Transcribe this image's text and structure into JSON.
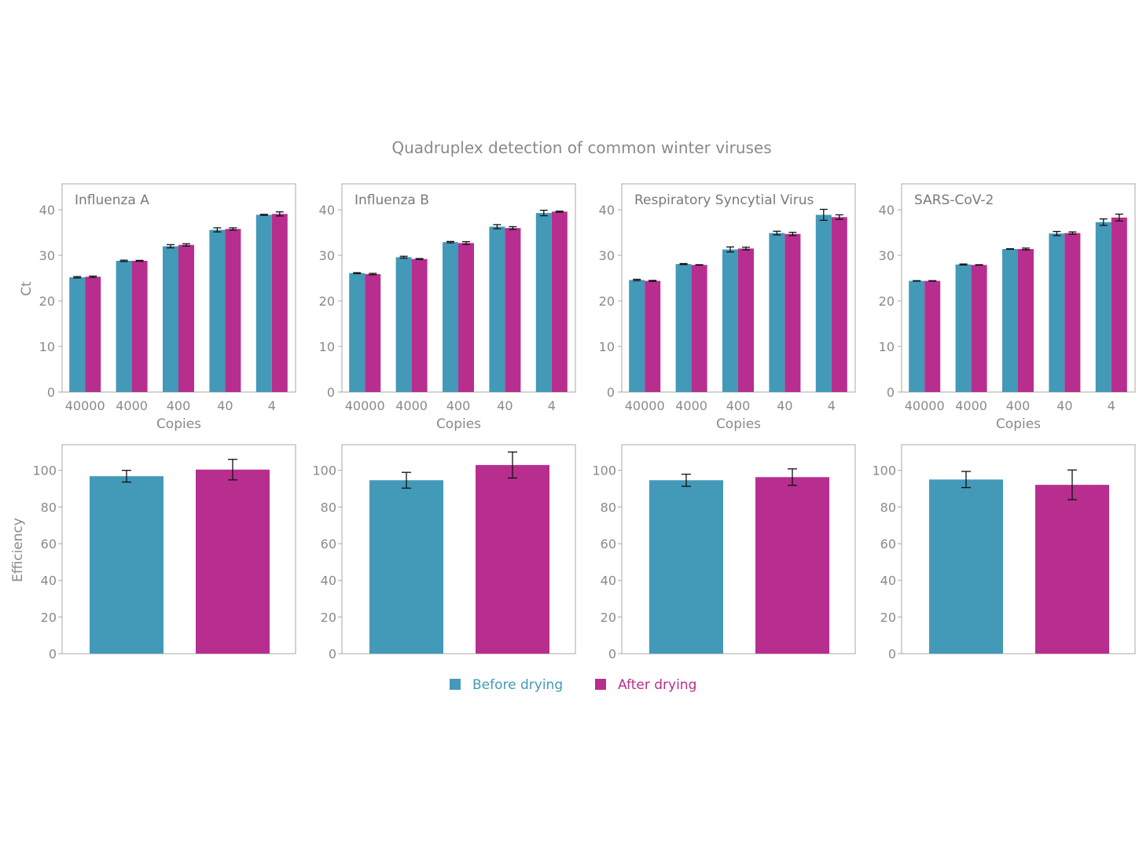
{
  "chart_data": {
    "type": "bar",
    "title": "Quadruplex detection of common winter viruses",
    "legend": {
      "placement": "bottom-center",
      "entries": [
        {
          "name": "Before drying",
          "color": "#4399b8"
        },
        {
          "name": "After drying",
          "color": "#b82e8f"
        }
      ]
    },
    "series_colors": {
      "before": "#4399b8",
      "after": "#b82e8f"
    },
    "ct_axis": {
      "ylabel": "Ct",
      "xlabel": "Copies",
      "ylim": [
        0,
        45.7
      ],
      "yticks": [
        0,
        10,
        20,
        30,
        40
      ]
    },
    "efficiency_axis": {
      "ylabel": "Efficiency",
      "ylim": [
        0,
        114
      ],
      "yticks": [
        0,
        20,
        40,
        60,
        80,
        100
      ]
    },
    "categories": [
      "40000",
      "4000",
      "400",
      "40",
      "4"
    ],
    "panels": [
      {
        "name": "Influenza A",
        "ct": {
          "series": [
            {
              "name": "Before drying",
              "values": [
                25.2,
                28.8,
                32.0,
                35.6,
                38.9
              ],
              "errors": [
                0.15,
                0.15,
                0.35,
                0.45,
                0.1
              ]
            },
            {
              "name": "After drying",
              "values": [
                25.3,
                28.8,
                32.3,
                35.8,
                39.1
              ],
              "errors": [
                0.15,
                0.1,
                0.25,
                0.25,
                0.45
              ]
            }
          ]
        },
        "efficiency": {
          "series": [
            {
              "name": "Before drying",
              "value": 96.8,
              "error": 3.2
            },
            {
              "name": "After drying",
              "value": 100.4,
              "error": 5.6
            }
          ]
        }
      },
      {
        "name": "Influenza B",
        "ct": {
          "series": [
            {
              "name": "Before drying",
              "values": [
                26.1,
                29.6,
                32.9,
                36.3,
                39.3
              ],
              "errors": [
                0.1,
                0.2,
                0.15,
                0.45,
                0.6
              ]
            },
            {
              "name": "After drying",
              "values": [
                25.9,
                29.2,
                32.7,
                36.0,
                39.6
              ],
              "errors": [
                0.15,
                0.1,
                0.3,
                0.3,
                0.1
              ]
            }
          ]
        },
        "efficiency": {
          "series": [
            {
              "name": "Before drying",
              "value": 94.6,
              "error": 4.3
            },
            {
              "name": "After drying",
              "value": 102.9,
              "error": 7.1
            }
          ]
        }
      },
      {
        "name": "Respiratory Syncytial Virus",
        "ct": {
          "series": [
            {
              "name": "Before drying",
              "values": [
                24.6,
                28.1,
                31.3,
                34.9,
                38.9
              ],
              "errors": [
                0.15,
                0.1,
                0.55,
                0.4,
                1.2
              ]
            },
            {
              "name": "After drying",
              "values": [
                24.4,
                27.9,
                31.5,
                34.7,
                38.4
              ],
              "errors": [
                0.1,
                0.05,
                0.3,
                0.35,
                0.5
              ]
            }
          ]
        },
        "efficiency": {
          "series": [
            {
              "name": "Before drying",
              "value": 94.6,
              "error": 3.3
            },
            {
              "name": "After drying",
              "value": 96.3,
              "error": 4.5
            }
          ]
        }
      },
      {
        "name": "SARS-CoV-2",
        "ct": {
          "series": [
            {
              "name": "Before drying",
              "values": [
                24.4,
                28.0,
                31.4,
                34.8,
                37.3
              ],
              "errors": [
                0.05,
                0.1,
                0.05,
                0.45,
                0.7
              ]
            },
            {
              "name": "After drying",
              "values": [
                24.4,
                27.9,
                31.4,
                34.9,
                38.3
              ],
              "errors": [
                0.05,
                0.05,
                0.2,
                0.25,
                0.75
              ]
            }
          ]
        },
        "efficiency": {
          "series": [
            {
              "name": "Before drying",
              "value": 95.0,
              "error": 4.4
            },
            {
              "name": "After drying",
              "value": 92.1,
              "error": 8.1
            }
          ]
        }
      }
    ]
  }
}
